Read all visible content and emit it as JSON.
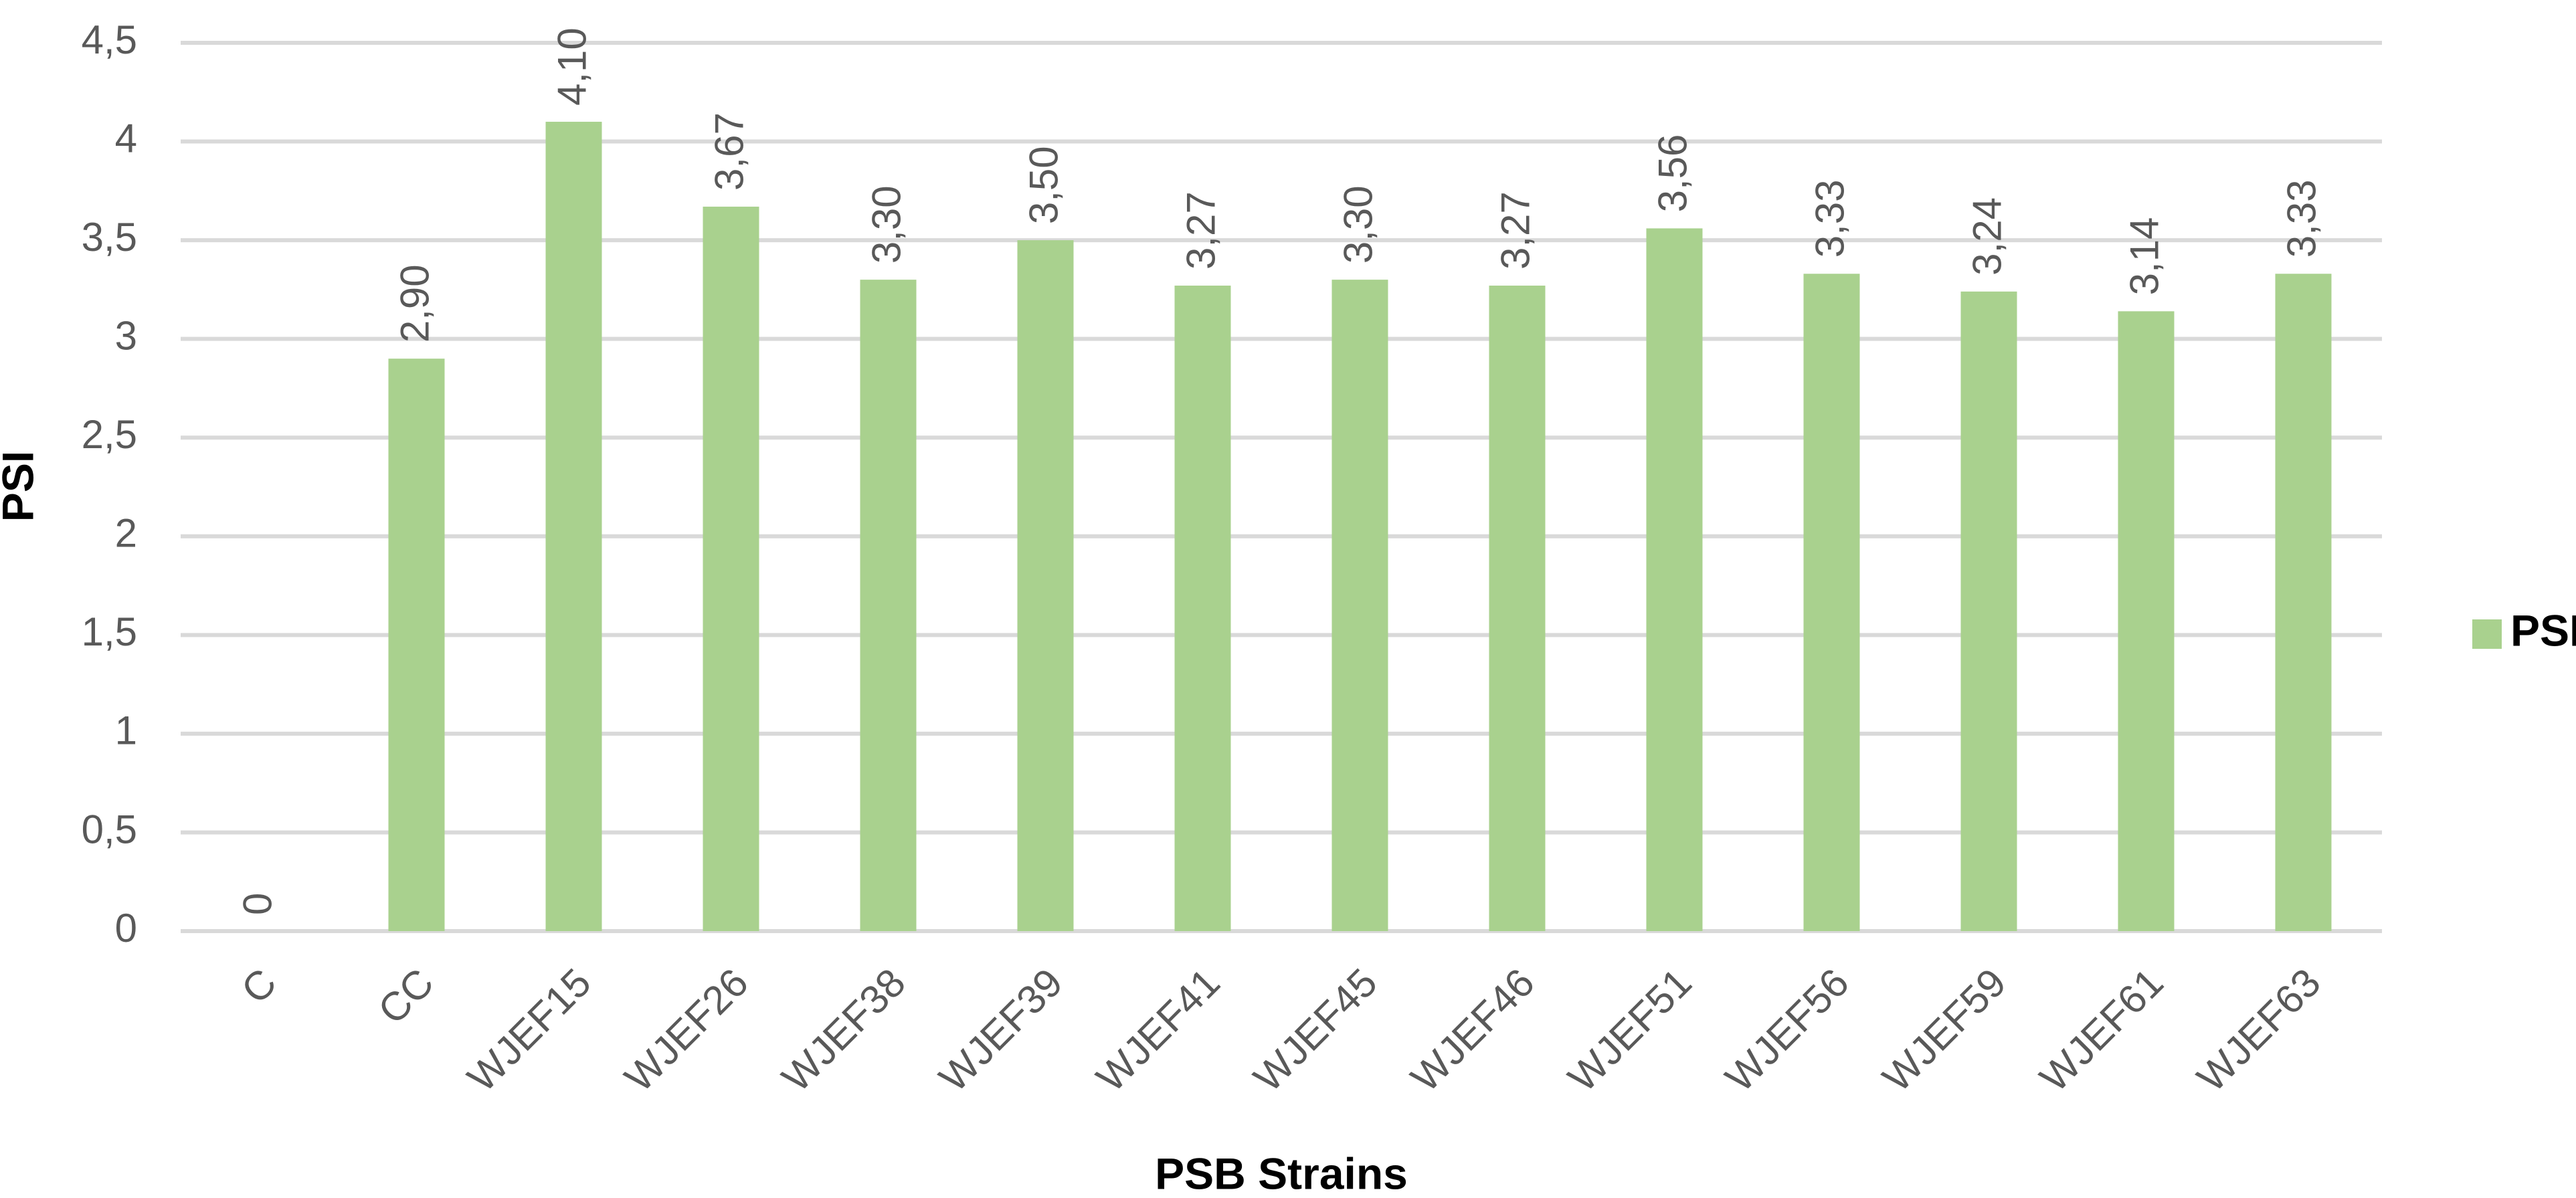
{
  "chart_data": {
    "type": "bar",
    "x_label": "PSB Strains",
    "y_label": "PSI",
    "categories": [
      "C",
      "CC",
      "WJEF15",
      "WJEF26",
      "WJEF38",
      "WJEF39",
      "WJEF41",
      "WJEF45",
      "WJEF46",
      "WJEF51",
      "WJEF56",
      "WJEF59",
      "WJEF61",
      "WJEF63"
    ],
    "series": [
      {
        "name": "PSI",
        "color": "#a9d18e",
        "values": [
          0,
          2.9,
          4.1,
          3.67,
          3.3,
          3.5,
          3.27,
          3.3,
          3.27,
          3.56,
          3.33,
          3.24,
          3.14,
          3.33
        ],
        "value_labels": [
          "0",
          "2,90",
          "4,10",
          "3,67",
          "3,30",
          "3,50",
          "3,27",
          "3,30",
          "3,27",
          "3,56",
          "3,33",
          "3,24",
          "3,14",
          "3,33"
        ]
      }
    ],
    "ylim": [
      0,
      4.5
    ],
    "yticks": [
      0,
      {
        "value": 0.5,
        "label": "0,5"
      },
      1,
      {
        "value": 1.5,
        "label": "1,5"
      },
      2,
      {
        "value": 2.5,
        "label": "2,5"
      },
      3,
      {
        "value": 3.5,
        "label": "3,5"
      },
      4,
      {
        "value": 4.5,
        "label": "4,5"
      }
    ],
    "grid": true,
    "legend": "right"
  }
}
